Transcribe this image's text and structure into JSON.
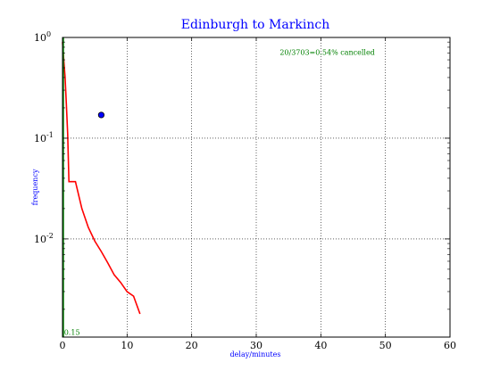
{
  "chart_data": {
    "type": "line",
    "title": "Edinburgh to Markinch",
    "xlabel": "delay/minutes",
    "ylabel": "frequency",
    "x_scale": "linear",
    "y_scale": "log",
    "xlim": [
      0,
      60
    ],
    "ylim": [
      0.00106,
      1.0
    ],
    "x_ticks": [
      0,
      10,
      20,
      30,
      40,
      50,
      60
    ],
    "x_tick_labels": [
      "0",
      "10",
      "20",
      "30",
      "40",
      "50",
      "60"
    ],
    "y_ticks": [
      1.0,
      0.1,
      0.01
    ],
    "y_tick_labels": [
      {
        "base": "10",
        "exp": "0"
      },
      {
        "base": "10",
        "exp": "-1"
      },
      {
        "base": "10",
        "exp": "-2"
      }
    ],
    "grid": true,
    "annotations": [
      {
        "text": "20/3703=0.54% cancelled",
        "x": 41,
        "y": 0.67
      },
      {
        "text": "0.15",
        "x": 0.1,
        "y": 0.00112
      }
    ],
    "series": [
      {
        "color": "#ff0000",
        "style": "line",
        "x": [
          0,
          0.2,
          0.4,
          0.6,
          0.8,
          1,
          2,
          3,
          4,
          5,
          6,
          7,
          8,
          9,
          10,
          11,
          12
        ],
        "y": [
          0.9,
          0.6,
          0.4,
          0.22,
          0.11,
          0.037,
          0.037,
          0.02,
          0.013,
          0.0095,
          0.0075,
          0.0058,
          0.0044,
          0.0037,
          0.003,
          0.0027,
          0.0018
        ]
      },
      {
        "color": "#0000ff",
        "style": "marker",
        "x": [
          6
        ],
        "y": [
          0.17
        ]
      },
      {
        "color": "#008000",
        "style": "line",
        "x": [
          0.15,
          0.15
        ],
        "y": [
          0.00106,
          1.0
        ]
      }
    ]
  }
}
